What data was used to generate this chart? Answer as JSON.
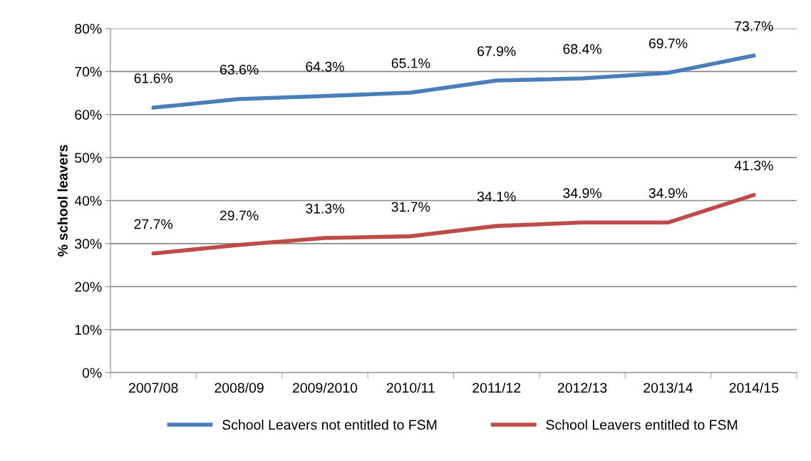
{
  "chart_data": {
    "type": "line",
    "ylabel": "% school leavers",
    "categories": [
      "2007/08",
      "2008/09",
      "2009/2010",
      "2010/11",
      "2011/12",
      "2012/13",
      "2013/14",
      "2014/15"
    ],
    "series": [
      {
        "name": "School Leavers not entitled to FSM",
        "color": "#4a7ebb",
        "values": [
          61.6,
          63.6,
          64.3,
          65.1,
          67.9,
          68.4,
          69.7,
          73.7
        ],
        "value_labels": [
          "61.6%",
          "63.6%",
          "64.3%",
          "65.1%",
          "67.9%",
          "68.4%",
          "69.7%",
          "73.7%"
        ]
      },
      {
        "name": "School Leavers entitled to FSM",
        "color": "#be4b48",
        "values": [
          27.7,
          29.7,
          31.3,
          31.7,
          34.1,
          34.9,
          34.9,
          41.3
        ],
        "value_labels": [
          "27.7%",
          "29.7%",
          "31.3%",
          "31.7%",
          "34.1%",
          "34.9%",
          "34.9%",
          "41.3%"
        ]
      }
    ],
    "ylim": [
      0,
      80
    ],
    "yticks": [
      {
        "value": 0,
        "label": "0%"
      },
      {
        "value": 10,
        "label": "10%"
      },
      {
        "value": 20,
        "label": "20%"
      },
      {
        "value": 30,
        "label": "30%"
      },
      {
        "value": 40,
        "label": "40%"
      },
      {
        "value": 50,
        "label": "50%"
      },
      {
        "value": 60,
        "label": "60%"
      },
      {
        "value": 70,
        "label": "70%"
      },
      {
        "value": 80,
        "label": "80%"
      }
    ],
    "grid": "y",
    "legend": "bottom",
    "marker": "none",
    "line_style": "solid"
  }
}
